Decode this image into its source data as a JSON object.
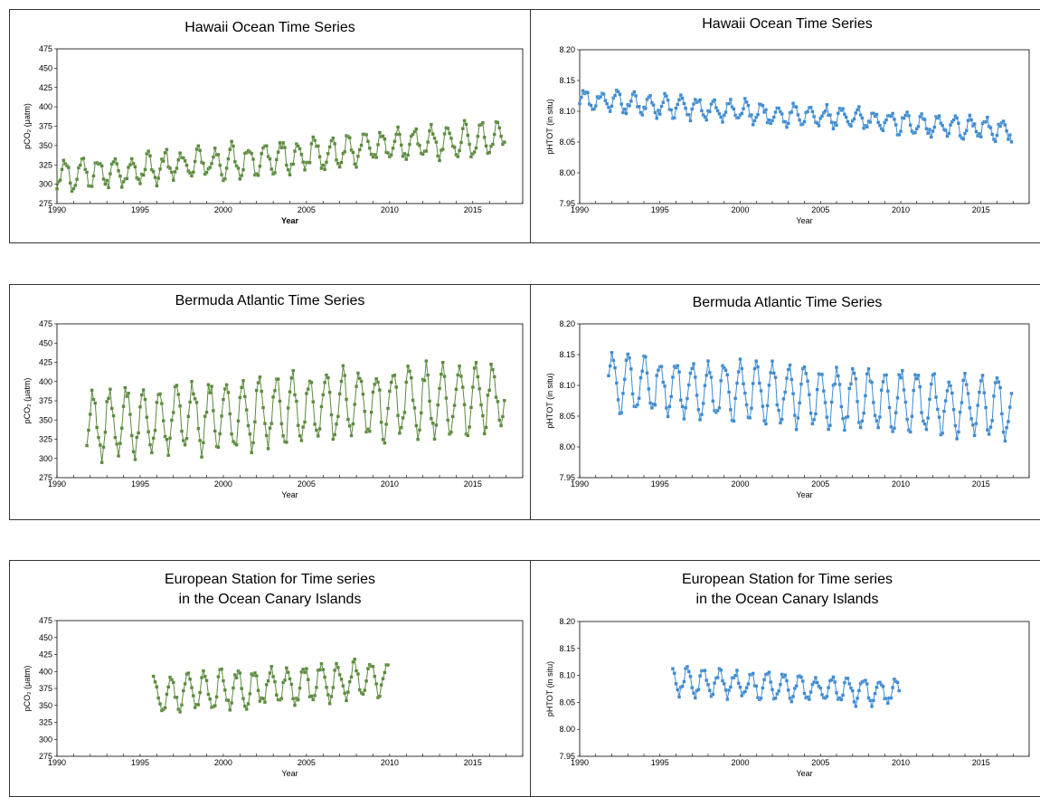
{
  "chart_data": [
    {
      "type": "line",
      "title": "Hawaii Ocean Time Series",
      "xlabel": "Year",
      "xlabel_bold": true,
      "ylabel": "pCO₂ (μatm)",
      "xlim": [
        1990,
        2018
      ],
      "ylim": [
        275,
        475
      ],
      "xticks": [
        1990,
        1995,
        2000,
        2005,
        2010,
        2015
      ],
      "yticks": [
        275,
        300,
        325,
        350,
        375,
        400,
        425,
        450,
        475
      ],
      "ytick_decimals": 0,
      "color": "#5a8a3c",
      "start": 1990.0,
      "end": 2016.9,
      "trend": [
        310,
        1.9
      ],
      "amp": 18,
      "noise": 8,
      "grid": false,
      "legend": "none"
    },
    {
      "type": "line",
      "title": "Hawaii Ocean Time Series",
      "xlabel": "Year",
      "xlabel_bold": false,
      "ylabel": "pHTOT (in situ)",
      "xlim": [
        1990,
        2018
      ],
      "ylim": [
        7.95,
        8.2
      ],
      "xticks": [
        1990,
        1995,
        2000,
        2005,
        2010,
        2015
      ],
      "yticks": [
        7.95,
        8.0,
        8.05,
        8.1,
        8.15,
        8.2
      ],
      "ytick_decimals": 2,
      "color": "#3d8ad0",
      "start": 1990.0,
      "end": 2016.9,
      "trend": [
        8.118,
        -0.0018
      ],
      "amp": 0.015,
      "noise": 0.007,
      "grid": false,
      "legend": "none"
    },
    {
      "type": "line",
      "title": "Bermuda Atlantic Time Series",
      "xlabel": "Year",
      "xlabel_bold": false,
      "ylabel": "pCO₂ (μatm)",
      "xlim": [
        1990,
        2018
      ],
      "ylim": [
        275,
        475
      ],
      "xticks": [
        1990,
        1995,
        2000,
        2005,
        2010,
        2015
      ],
      "yticks": [
        275,
        300,
        325,
        350,
        375,
        400,
        425,
        450,
        475
      ],
      "ytick_decimals": 0,
      "color": "#5a8a3c",
      "start": 1991.8,
      "end": 2016.9,
      "trend": [
        340,
        1.6
      ],
      "amp": 42,
      "noise": 12,
      "grid": false,
      "legend": "none"
    },
    {
      "type": "line",
      "title": "Bermuda Atlantic Time Series",
      "xlabel": "Year",
      "xlabel_bold": false,
      "ylabel": "pHTOT (in situ)",
      "xlim": [
        1990,
        2018
      ],
      "ylim": [
        7.95,
        8.2
      ],
      "xticks": [
        1990,
        1995,
        2000,
        2005,
        2010,
        2015
      ],
      "yticks": [
        7.95,
        8.0,
        8.05,
        8.1,
        8.15,
        8.2
      ],
      "ytick_decimals": 2,
      "color": "#3d8ad0",
      "start": 1991.8,
      "end": 2016.9,
      "trend": [
        8.105,
        -0.0015
      ],
      "amp": 0.045,
      "noise": 0.012,
      "grid": false,
      "legend": "none"
    },
    {
      "type": "line",
      "title_lines": [
        "European Station for Time series",
        "in the Ocean Canary Islands"
      ],
      "xlabel": "Year",
      "xlabel_bold": false,
      "ylabel": "pCO₂ (μatm)",
      "xlim": [
        1990,
        2018
      ],
      "ylim": [
        275,
        475
      ],
      "xticks": [
        1990,
        1995,
        2000,
        2005,
        2010,
        2015
      ],
      "yticks": [
        275,
        300,
        325,
        350,
        375,
        400,
        425,
        450,
        475
      ],
      "ytick_decimals": 0,
      "color": "#5a8a3c",
      "start": 1995.8,
      "end": 2009.9,
      "trend": [
        355,
        1.8
      ],
      "amp": 25,
      "noise": 8,
      "grid": false,
      "legend": "none"
    },
    {
      "type": "line",
      "title_lines": [
        "European Station for Time series",
        "in the Ocean Canary Islands"
      ],
      "xlabel": "Year",
      "xlabel_bold": false,
      "ylabel": "pHTOT (in situ)",
      "xlim": [
        1990,
        2018
      ],
      "ylim": [
        7.95,
        8.2
      ],
      "xticks": [
        1990,
        1995,
        2000,
        2005,
        2010,
        2015
      ],
      "yticks": [
        7.95,
        8.0,
        8.05,
        8.1,
        8.15,
        8.2
      ],
      "ytick_decimals": 2,
      "color": "#3d8ad0",
      "start": 1995.8,
      "end": 2009.9,
      "trend": [
        8.098,
        -0.0015
      ],
      "amp": 0.022,
      "noise": 0.008,
      "grid": false,
      "legend": "none"
    }
  ]
}
